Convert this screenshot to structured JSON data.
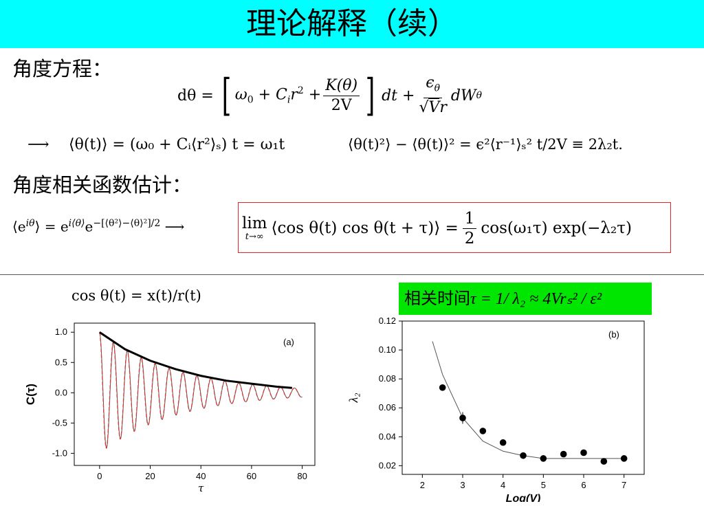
{
  "title": "理论解释（续）",
  "sections": {
    "angle_equation": "角度方程：",
    "angle_correlation": "角度相关函数估计："
  },
  "equations": {
    "eq1": {
      "lhs": "dθ =",
      "omega0": "ω",
      "ci": "C",
      "r2": "r",
      "k_num": "K(θ)",
      "k_den": "2V",
      "dt": "dt +",
      "eps_num": "ϵ",
      "eps_den_a": "√",
      "eps_den_b": "V",
      "eps_den_c": "r",
      "dw": "dW"
    },
    "arrow": "⟶",
    "eq2": "⟨θ(t)⟩ = (ω₀ + Cᵢ⟨r²⟩ₛ) t = ω₁t",
    "eq3": "⟨θ(t)²⟩ − ⟨θ(t)⟩² = ϵ²⟨r⁻¹⟩ₛ² t/2V ≡ 2λ₂t.",
    "eq4_lhs": "⟨e",
    "eq4_lhs_sup": "iθ",
    "eq4_mid": "⟩ = e",
    "eq4_mid_sup": "i⟨θ⟩",
    "eq4_e": "e",
    "eq4_exp": "−[⟨θ²⟩−⟨θ⟩²]/2",
    "eq5_lim": "lim",
    "eq5_lim_sub": "t→∞",
    "eq5_body": "⟨cos θ(t) cos θ(t + τ)⟩ =",
    "eq5_num": "1",
    "eq5_den": "2",
    "eq5_tail": "cos(ω₁τ) exp(−λ₂τ)",
    "eq6": "cos θ(t) = x(t)/r(t)",
    "green_label": "相关时间",
    "green_formula": "τ = 1/ λ₂ ≈ 4Vrₛ² / ε²"
  },
  "chart_data": [
    {
      "type": "line",
      "panel_label": "(a)",
      "xlabel": "τ",
      "ylabel": "C(τ)",
      "xlim": [
        -10,
        85
      ],
      "ylim": [
        -1.2,
        1.15
      ],
      "xticks": [
        "0",
        "20",
        "40",
        "60",
        "80"
      ],
      "yticks": [
        "1.0",
        "0.5",
        "0.0",
        "-0.5",
        "-1.0"
      ],
      "series": [
        {
          "role": "envelope",
          "color": "#000000",
          "x": [
            0,
            10,
            20,
            30,
            40,
            50,
            60,
            70,
            76
          ],
          "y": [
            1.0,
            0.72,
            0.53,
            0.39,
            0.28,
            0.2,
            0.15,
            0.1,
            0.08
          ]
        },
        {
          "role": "oscillation-data",
          "color": "#555555",
          "period": 5.5,
          "decay": 0.033,
          "x_range": [
            0,
            80
          ]
        },
        {
          "role": "oscillation-fit",
          "color": "#e03030",
          "dashed": true,
          "period": 5.5,
          "decay": 0.033,
          "x_range": [
            0,
            80
          ]
        }
      ]
    },
    {
      "type": "scatter",
      "panel_label": "(b)",
      "xlabel": "Log(V)",
      "ylabel": "λ₂",
      "xlim": [
        1.5,
        7.5
      ],
      "ylim": [
        0.014,
        0.12
      ],
      "xticks": [
        "2",
        "3",
        "4",
        "5",
        "6",
        "7"
      ],
      "yticks": [
        "0.12",
        "0.10",
        "0.08",
        "0.06",
        "0.04",
        "0.02"
      ],
      "points": [
        {
          "x": 2.5,
          "y": 0.074,
          "err": 0.002
        },
        {
          "x": 3.0,
          "y": 0.053,
          "err": 0.004
        },
        {
          "x": 3.5,
          "y": 0.044,
          "err": 0.002
        },
        {
          "x": 4.0,
          "y": 0.036,
          "err": 0.001
        },
        {
          "x": 4.5,
          "y": 0.027,
          "err": 0.001
        },
        {
          "x": 5.0,
          "y": 0.025,
          "err": 0.001
        },
        {
          "x": 5.5,
          "y": 0.028,
          "err": 0.001
        },
        {
          "x": 6.0,
          "y": 0.029,
          "err": 0.001
        },
        {
          "x": 6.5,
          "y": 0.023,
          "err": 0.001
        },
        {
          "x": 7.0,
          "y": 0.025,
          "err": 0.001
        }
      ],
      "fit": {
        "x": [
          2.25,
          2.5,
          3.0,
          3.5,
          4.0,
          4.5,
          5.0,
          5.5,
          6.0,
          6.5,
          7.0
        ],
        "y": [
          0.106,
          0.083,
          0.053,
          0.037,
          0.03,
          0.027,
          0.025,
          0.025,
          0.025,
          0.025,
          0.025
        ]
      }
    }
  ]
}
